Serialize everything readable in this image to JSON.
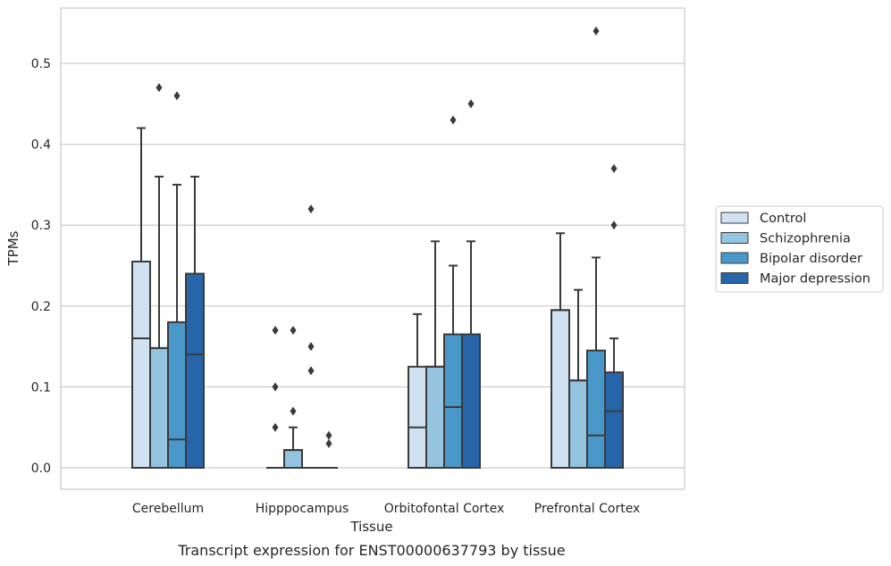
{
  "chart_data": {
    "type": "box",
    "xlabel": "Tissue",
    "ylabel": "TPMs",
    "caption": "Transcript expression for ENST00000637793 by tissue",
    "ylim": [
      -0.026,
      0.57
    ],
    "yticks": [
      0.0,
      0.1,
      0.2,
      0.3,
      0.4,
      0.5
    ],
    "ytick_labels": [
      "0.0",
      "0.1",
      "0.2",
      "0.3",
      "0.4",
      "0.5"
    ],
    "grid": "horizontal",
    "legend_position": "right",
    "categories": [
      "Cerebellum",
      "Hipppocampus",
      "Orbitofontal Cortex",
      "Prefrontal Cortex"
    ],
    "series": [
      {
        "name": "Control",
        "color": "#d0e1f2",
        "boxes": [
          {
            "q1": 0.0,
            "median": 0.16,
            "q3": 0.255,
            "whislo": 0.0,
            "whishi": 0.42,
            "fliers": []
          },
          {
            "q1": 0.0,
            "median": 0.0,
            "q3": 0.0,
            "whislo": 0.0,
            "whishi": 0.0,
            "fliers": [
              0.17,
              0.1,
              0.05
            ]
          },
          {
            "q1": 0.0,
            "median": 0.05,
            "q3": 0.125,
            "whislo": 0.0,
            "whishi": 0.19,
            "fliers": []
          },
          {
            "q1": 0.0,
            "median": 0.195,
            "q3": 0.195,
            "whislo": 0.0,
            "whishi": 0.29,
            "fliers": []
          }
        ]
      },
      {
        "name": "Schizophrenia",
        "color": "#94c4df",
        "boxes": [
          {
            "q1": 0.0,
            "median": 0.148,
            "q3": 0.148,
            "whislo": 0.0,
            "whishi": 0.36,
            "fliers": [
              0.47
            ]
          },
          {
            "q1": 0.0,
            "median": 0.022,
            "q3": 0.022,
            "whislo": 0.0,
            "whishi": 0.05,
            "fliers": [
              0.17,
              0.07
            ]
          },
          {
            "q1": 0.0,
            "median": 0.125,
            "q3": 0.125,
            "whislo": 0.0,
            "whishi": 0.28,
            "fliers": []
          },
          {
            "q1": 0.0,
            "median": 0.108,
            "q3": 0.108,
            "whislo": 0.0,
            "whishi": 0.22,
            "fliers": []
          }
        ]
      },
      {
        "name": "Bipolar disorder",
        "color": "#4a98c9",
        "boxes": [
          {
            "q1": 0.0,
            "median": 0.035,
            "q3": 0.18,
            "whislo": 0.0,
            "whishi": 0.35,
            "fliers": [
              0.46
            ]
          },
          {
            "q1": 0.0,
            "median": 0.0,
            "q3": 0.0,
            "whislo": 0.0,
            "whishi": 0.0,
            "fliers": [
              0.32,
              0.15,
              0.12
            ]
          },
          {
            "q1": 0.0,
            "median": 0.075,
            "q3": 0.165,
            "whislo": 0.0,
            "whishi": 0.25,
            "fliers": [
              0.43
            ]
          },
          {
            "q1": 0.0,
            "median": 0.04,
            "q3": 0.145,
            "whislo": 0.0,
            "whishi": 0.26,
            "fliers": [
              0.54
            ]
          }
        ]
      },
      {
        "name": "Major depression",
        "color": "#2765ab",
        "boxes": [
          {
            "q1": 0.0,
            "median": 0.14,
            "q3": 0.24,
            "whislo": 0.0,
            "whishi": 0.36,
            "fliers": []
          },
          {
            "q1": 0.0,
            "median": 0.0,
            "q3": 0.0,
            "whislo": 0.0,
            "whishi": 0.0,
            "fliers": [
              0.04,
              0.03
            ]
          },
          {
            "q1": 0.0,
            "median": 0.165,
            "q3": 0.165,
            "whislo": 0.0,
            "whishi": 0.28,
            "fliers": [
              0.45
            ]
          },
          {
            "q1": 0.0,
            "median": 0.07,
            "q3": 0.118,
            "whislo": 0.0,
            "whishi": 0.16,
            "fliers": [
              0.37,
              0.3
            ]
          }
        ]
      }
    ]
  }
}
